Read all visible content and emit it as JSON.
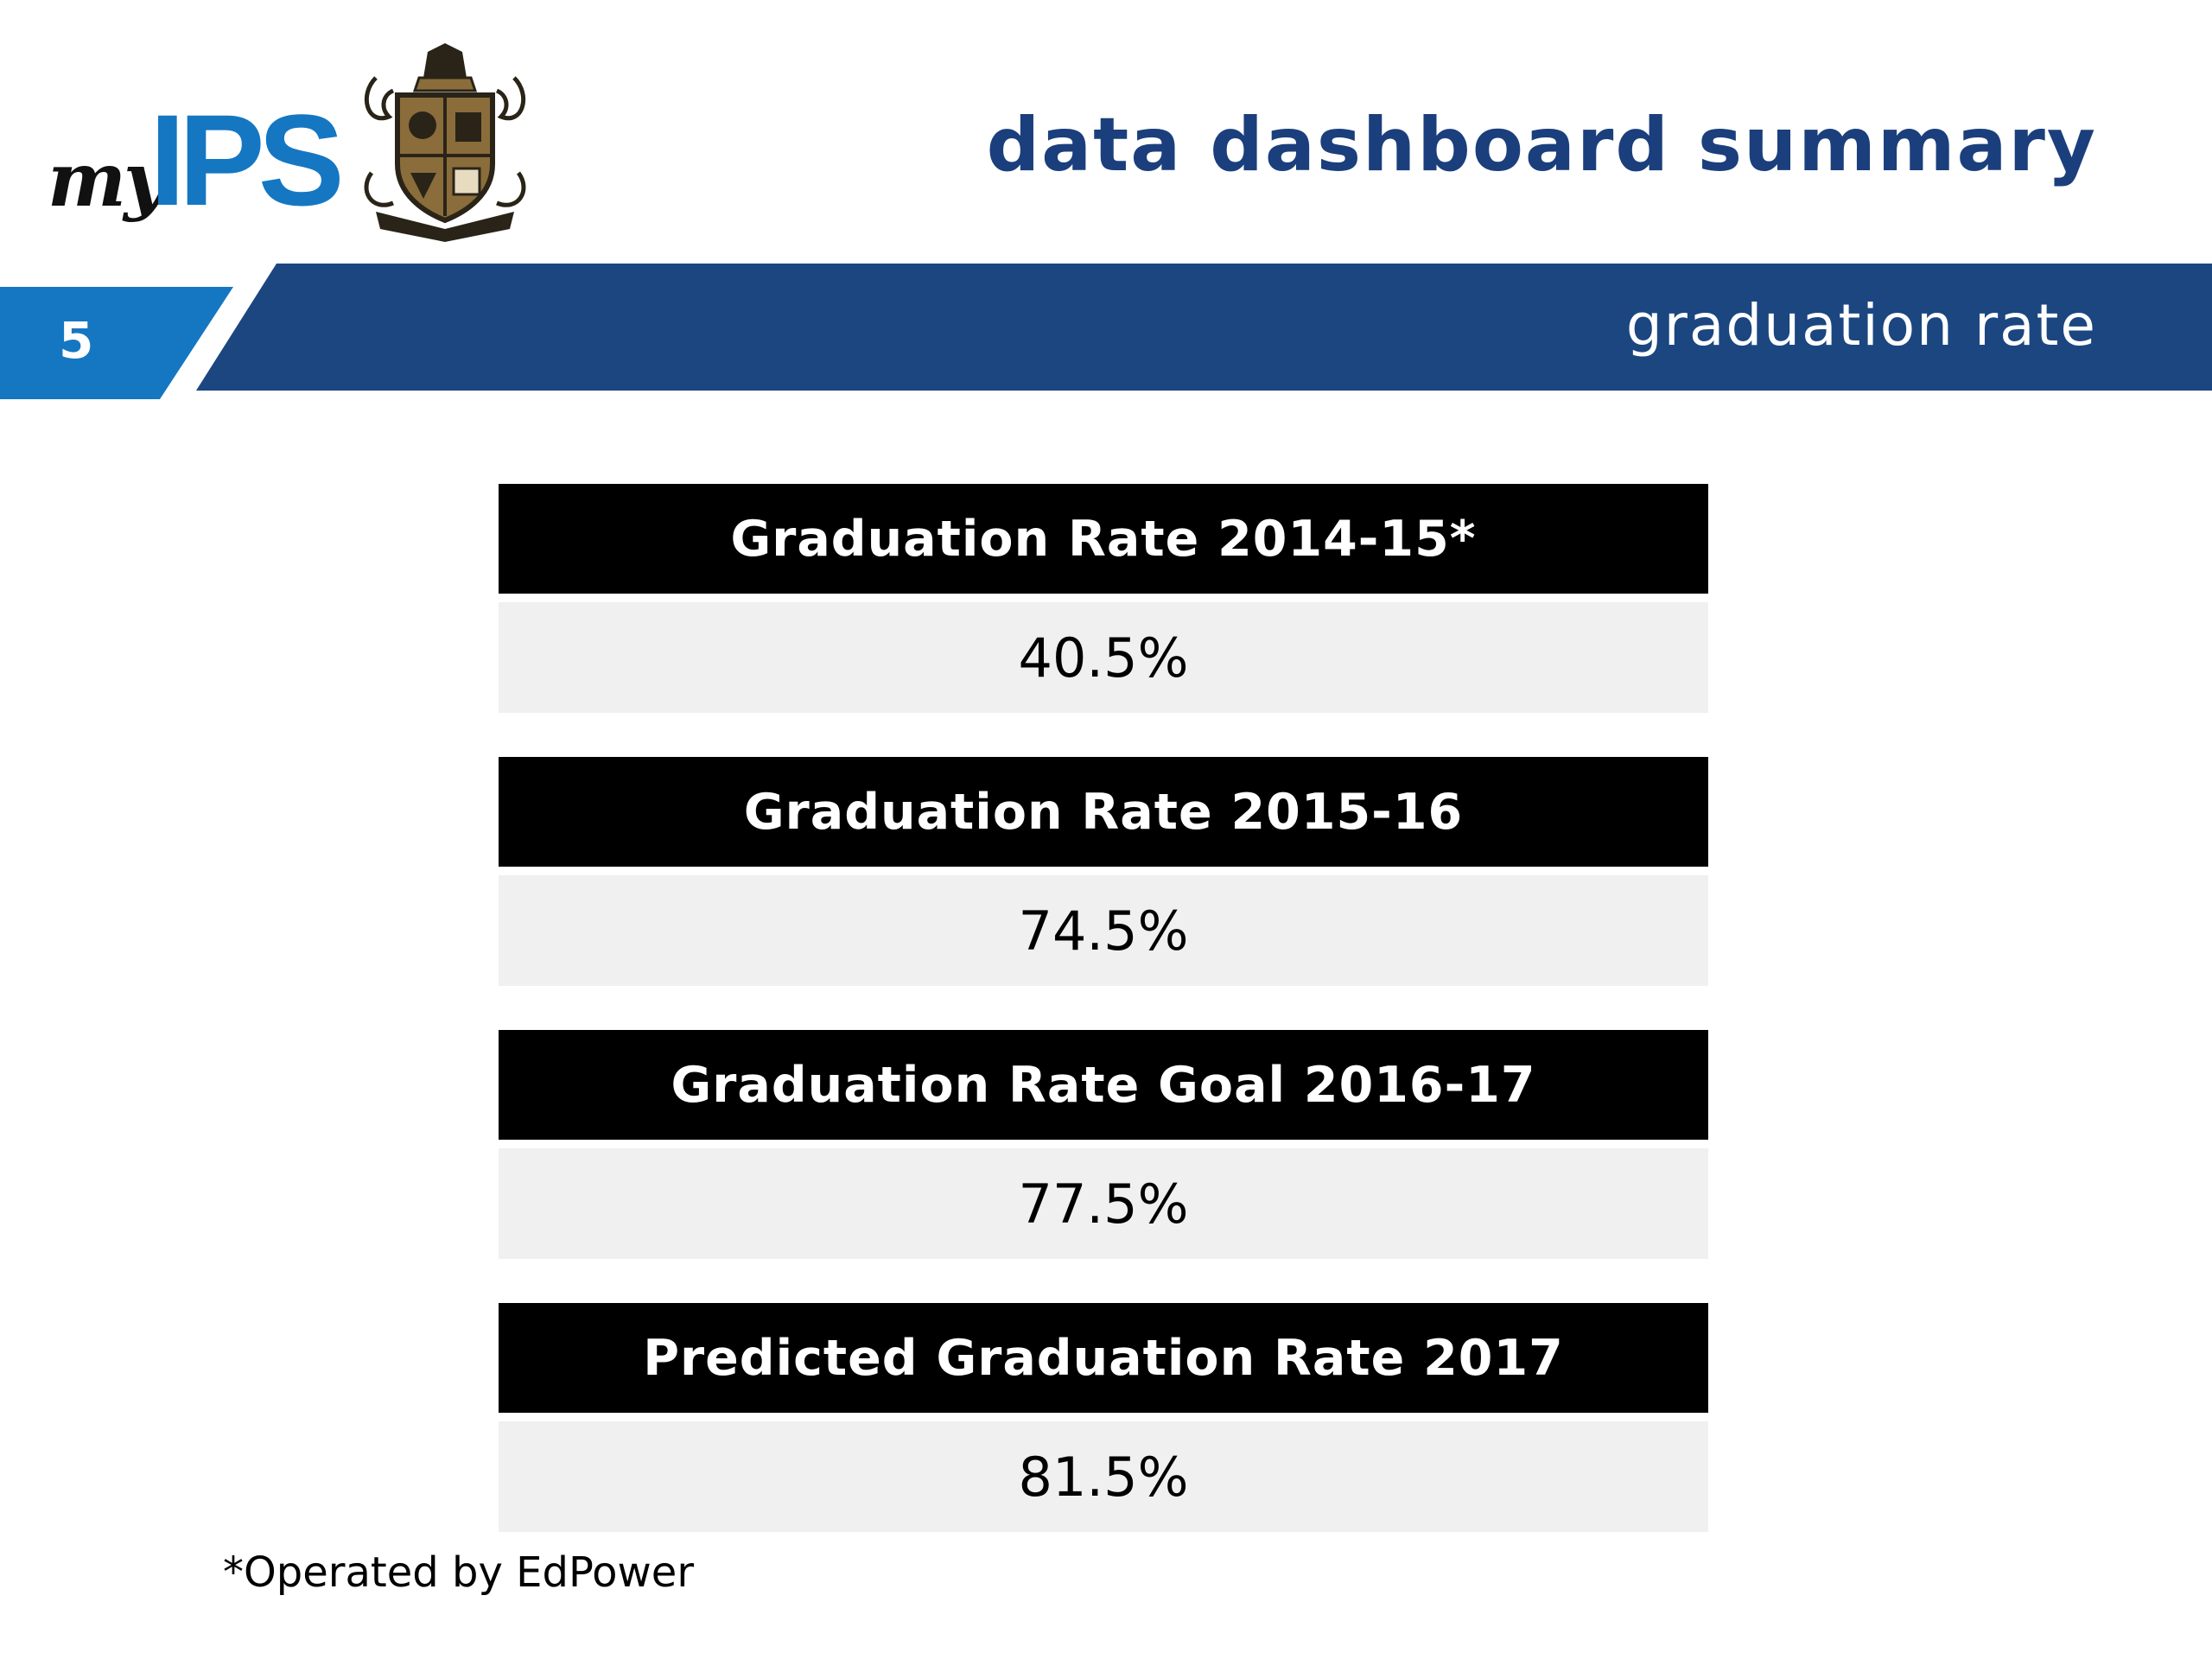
{
  "header": {
    "logo_my": "my",
    "logo_ips": "IPS",
    "title": "data dashboard summary"
  },
  "banner": {
    "slide_number": "5",
    "section_title": "graduation rate"
  },
  "metrics": [
    {
      "label": "Graduation Rate 2014-15*",
      "value": "40.5%"
    },
    {
      "label": "Graduation Rate 2015-16",
      "value": "74.5%"
    },
    {
      "label": "Graduation Rate Goal 2016-17",
      "value": "77.5%"
    },
    {
      "label": "Predicted Graduation Rate 2017",
      "value": "81.5%"
    }
  ],
  "footnote": "*Operated by EdPower",
  "colors": {
    "brand_blue": "#1b3f7c",
    "accent_blue": "#1577c2",
    "crest_gold": "#8a6d3b"
  },
  "icons": {
    "crest": "school-crest-icon"
  }
}
